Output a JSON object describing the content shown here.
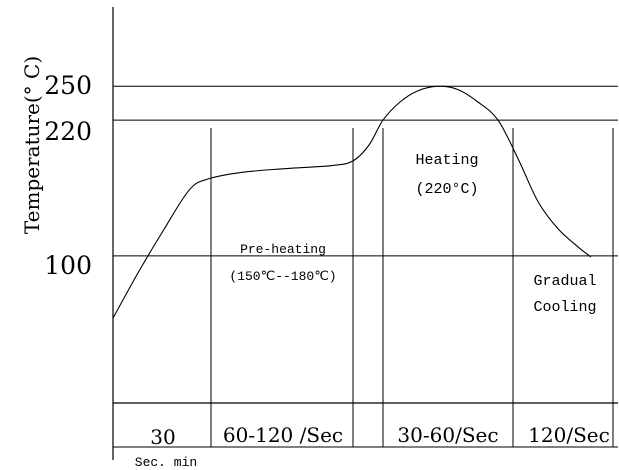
{
  "chart_data": {
    "type": "line",
    "title": "",
    "ylabel": "Temperature(° C)",
    "xlabel": "",
    "y_ticks": [
      {
        "label": "250",
        "value": 250
      },
      {
        "label": "220",
        "value": 220
      },
      {
        "label": "100",
        "value": 100
      }
    ],
    "ylim": [
      -30,
      320
    ],
    "xlim": [
      0,
      505
    ],
    "curve": [
      {
        "x": 0,
        "y": 45
      },
      {
        "x": 25,
        "y": 85
      },
      {
        "x": 50,
        "y": 122
      },
      {
        "x": 76,
        "y": 158
      },
      {
        "x": 95,
        "y": 168
      },
      {
        "x": 130,
        "y": 174
      },
      {
        "x": 170,
        "y": 177
      },
      {
        "x": 220,
        "y": 180
      },
      {
        "x": 240,
        "y": 184
      },
      {
        "x": 256,
        "y": 198
      },
      {
        "x": 270,
        "y": 220
      },
      {
        "x": 287,
        "y": 236
      },
      {
        "x": 305,
        "y": 246
      },
      {
        "x": 326,
        "y": 250
      },
      {
        "x": 345,
        "y": 247
      },
      {
        "x": 365,
        "y": 236
      },
      {
        "x": 385,
        "y": 220
      },
      {
        "x": 405,
        "y": 186
      },
      {
        "x": 425,
        "y": 148
      },
      {
        "x": 445,
        "y": 124
      },
      {
        "x": 465,
        "y": 108
      },
      {
        "x": 478,
        "y": 99
      }
    ],
    "phase_dividers_x": [
      98,
      240,
      270,
      400,
      500
    ],
    "annotations": [
      {
        "id": "pre-heating",
        "lines": [
          "Pre-heating",
          "(150℃--180℃)"
        ]
      },
      {
        "id": "heating",
        "lines": [
          "Heating",
          "(220°C)"
        ]
      },
      {
        "id": "gradual-cooling",
        "lines": [
          "Gradual",
          "Cooling"
        ]
      }
    ],
    "duration_labels": [
      "30",
      "60-120 /Sec",
      "30-60/Sec",
      "120/Sec"
    ],
    "bottom_note": "Sec. min"
  }
}
